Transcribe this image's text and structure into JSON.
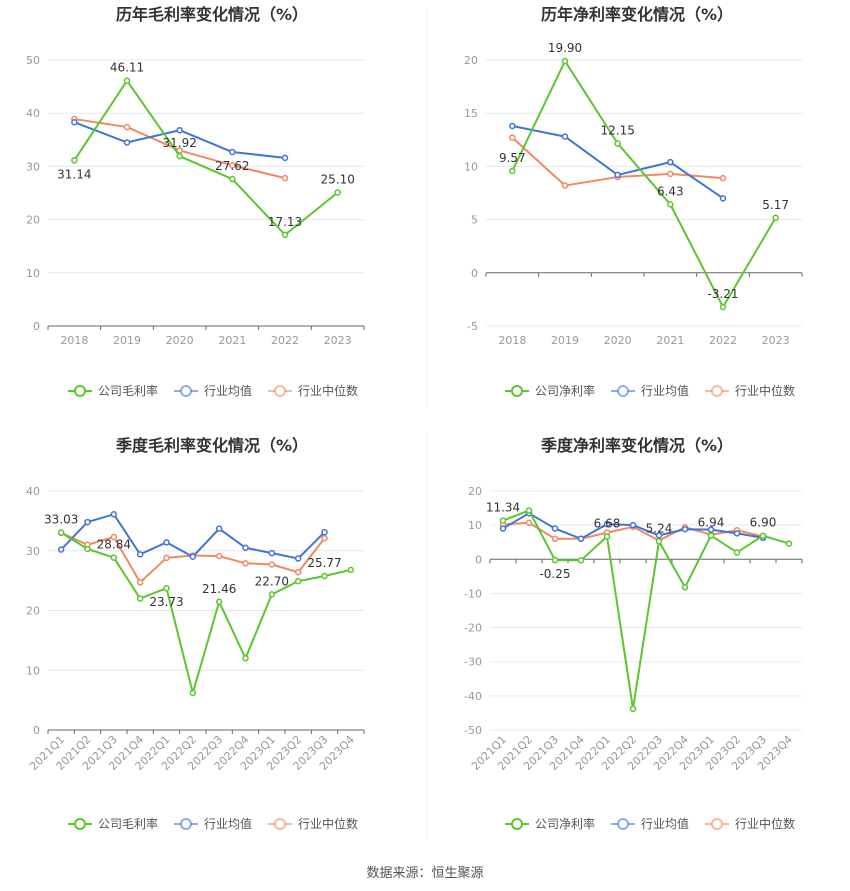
{
  "source": "数据来源：恒生聚源",
  "colors": {
    "company": "#5ac72e",
    "average": "#3f74dc",
    "median": "#f08a62",
    "grid": "#e6e8f0",
    "axis": "#666666",
    "tick": "#999999",
    "title": "#333333"
  },
  "chart_data": [
    {
      "type": "line",
      "title": "历年毛利率变化情况（%）",
      "categories": [
        "2018",
        "2019",
        "2020",
        "2021",
        "2022",
        "2023"
      ],
      "ylim": [
        0,
        50
      ],
      "yticks": [
        0,
        10,
        20,
        30,
        40,
        50
      ],
      "series": [
        {
          "name": "公司毛利率",
          "role": "company",
          "values": [
            31.14,
            46.11,
            31.92,
            27.62,
            17.13,
            25.1
          ]
        },
        {
          "name": "行业均值",
          "role": "average",
          "values": [
            38.3,
            34.5,
            36.8,
            32.7,
            31.6,
            null
          ]
        },
        {
          "name": "行业中位数",
          "role": "median",
          "values": [
            38.9,
            37.4,
            33.0,
            30.2,
            27.8,
            null
          ]
        }
      ],
      "data_labels": [
        "31.14",
        "46.11",
        "31.92",
        "27.62",
        "17.13",
        "25.10"
      ],
      "rotate_x": false
    },
    {
      "type": "line",
      "title": "历年净利率变化情况（%）",
      "categories": [
        "2018",
        "2019",
        "2020",
        "2021",
        "2022",
        "2023"
      ],
      "ylim": [
        -5,
        20
      ],
      "yticks": [
        -5,
        0,
        5,
        10,
        15,
        20
      ],
      "series": [
        {
          "name": "公司净利率",
          "role": "company",
          "values": [
            9.57,
            19.9,
            12.15,
            6.43,
            -3.21,
            5.17
          ]
        },
        {
          "name": "行业均值",
          "role": "average",
          "values": [
            13.8,
            12.8,
            9.2,
            10.4,
            7.0,
            null
          ]
        },
        {
          "name": "行业中位数",
          "role": "median",
          "values": [
            12.7,
            8.2,
            9.0,
            9.3,
            8.9,
            null
          ]
        }
      ],
      "data_labels": [
        "9.57",
        "19.90",
        "12.15",
        "6.43",
        "-3.21",
        "5.17"
      ],
      "rotate_x": false
    },
    {
      "type": "line",
      "title": "季度毛利率变化情况（%）",
      "categories": [
        "2021Q1",
        "2021Q2",
        "2021Q3",
        "2021Q4",
        "2022Q1",
        "2022Q2",
        "2022Q3",
        "2022Q4",
        "2023Q1",
        "2023Q2",
        "2023Q3",
        "2023Q4"
      ],
      "ylim": [
        0,
        40
      ],
      "yticks": [
        0,
        10,
        20,
        30,
        40
      ],
      "series": [
        {
          "name": "公司毛利率",
          "role": "company",
          "values": [
            33.03,
            30.3,
            28.84,
            22.0,
            23.73,
            6.2,
            21.46,
            12.0,
            22.7,
            24.9,
            25.77,
            26.8
          ]
        },
        {
          "name": "行业均值",
          "role": "average",
          "values": [
            30.2,
            34.8,
            36.1,
            29.4,
            31.4,
            29.0,
            33.7,
            30.5,
            29.6,
            28.7,
            33.1,
            null
          ]
        },
        {
          "name": "行业中位数",
          "role": "median",
          "values": [
            33.0,
            31.0,
            32.3,
            24.7,
            28.8,
            29.2,
            29.1,
            27.9,
            27.7,
            26.4,
            32.1,
            null
          ]
        }
      ],
      "data_labels": [
        "33.03",
        "",
        "28.84",
        "",
        "23.73",
        "",
        "21.46",
        "",
        "22.70",
        "",
        "25.77",
        ""
      ],
      "rotate_x": true
    },
    {
      "type": "line",
      "title": "季度净利率变化情况（%）",
      "categories": [
        "2021Q1",
        "2021Q2",
        "2021Q3",
        "2021Q4",
        "2022Q1",
        "2022Q2",
        "2022Q3",
        "2022Q4",
        "2023Q1",
        "2023Q2",
        "2023Q3",
        "2023Q4"
      ],
      "ylim": [
        -50,
        20
      ],
      "yticks": [
        -50,
        -40,
        -30,
        -20,
        -10,
        0,
        10,
        20
      ],
      "series": [
        {
          "name": "公司净利率",
          "role": "company",
          "values": [
            11.34,
            14.3,
            -0.25,
            -0.3,
            6.68,
            -43.8,
            5.24,
            -8.2,
            6.94,
            2.0,
            6.9,
            4.6
          ]
        },
        {
          "name": "行业均值",
          "role": "average",
          "values": [
            9.0,
            13.5,
            9.0,
            6.0,
            10.3,
            10.0,
            7.0,
            8.8,
            8.7,
            7.6,
            6.3,
            null
          ]
        },
        {
          "name": "行业中位数",
          "role": "median",
          "values": [
            10.2,
            10.7,
            6.0,
            6.0,
            7.8,
            9.5,
            5.5,
            9.4,
            7.2,
            8.5,
            6.7,
            null
          ]
        }
      ],
      "data_labels": [
        "11.34",
        "",
        "-0.25",
        "",
        "6.68",
        "",
        "5.24",
        "",
        "6.94",
        "",
        "6.90",
        ""
      ],
      "rotate_x": true
    }
  ]
}
